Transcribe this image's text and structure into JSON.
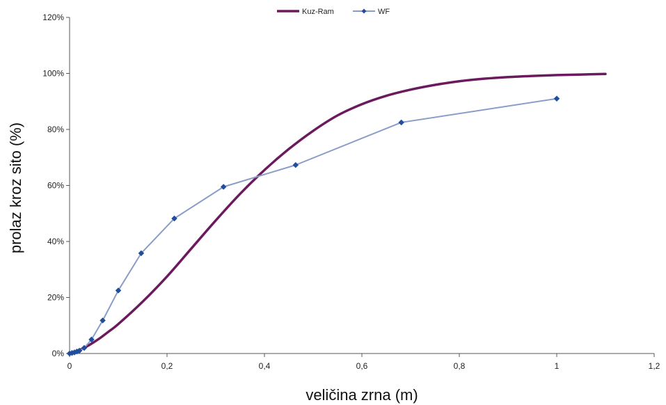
{
  "chart_data": {
    "type": "line",
    "xlabel": "veličina zrna (m)",
    "ylabel": "prolaz kroz sito (%)",
    "xlim": [
      0,
      1.2
    ],
    "ylim": [
      0,
      120
    ],
    "x_ticks": [
      0,
      0.2,
      0.4,
      0.6,
      0.8,
      1.0,
      1.2
    ],
    "x_tick_labels": [
      "0",
      "0,2",
      "0,4",
      "0,6",
      "0,8",
      "1",
      "1,2"
    ],
    "y_ticks": [
      0,
      20,
      40,
      60,
      80,
      100,
      120
    ],
    "y_tick_labels": [
      "0%",
      "20%",
      "40%",
      "60%",
      "80%",
      "100%",
      "120%"
    ],
    "grid": false,
    "legend_position": "top-center",
    "series": [
      {
        "name": "Kuz-Ram",
        "color": "#6b1a5e",
        "marker": "none",
        "x": [
          0,
          0.02,
          0.04,
          0.06,
          0.08,
          0.1,
          0.15,
          0.2,
          0.25,
          0.3,
          0.35,
          0.4,
          0.45,
          0.5,
          0.55,
          0.6,
          0.65,
          0.7,
          0.75,
          0.8,
          0.85,
          0.9,
          0.95,
          1.0,
          1.05,
          1.1
        ],
        "y": [
          0,
          1.2,
          3.0,
          5.2,
          7.8,
          10.5,
          18.5,
          27.5,
          37.5,
          47.5,
          57.0,
          65.5,
          73.0,
          79.5,
          85.0,
          89.0,
          92.0,
          94.2,
          95.9,
          97.2,
          98.1,
          98.7,
          99.1,
          99.4,
          99.6,
          99.8
        ]
      },
      {
        "name": "WF",
        "color": "#1f4e9c",
        "line_color": "#8a9cc8",
        "marker": "diamond",
        "x": [
          0,
          0.005,
          0.01,
          0.015,
          0.02,
          0.03,
          0.045,
          0.068,
          0.1,
          0.147,
          0.215,
          0.316,
          0.464,
          0.681,
          1.0
        ],
        "y": [
          0,
          0.2,
          0.4,
          0.7,
          1.0,
          2.0,
          5.0,
          11.8,
          22.5,
          35.8,
          48.2,
          59.5,
          67.3,
          82.5,
          91.0
        ]
      }
    ]
  }
}
